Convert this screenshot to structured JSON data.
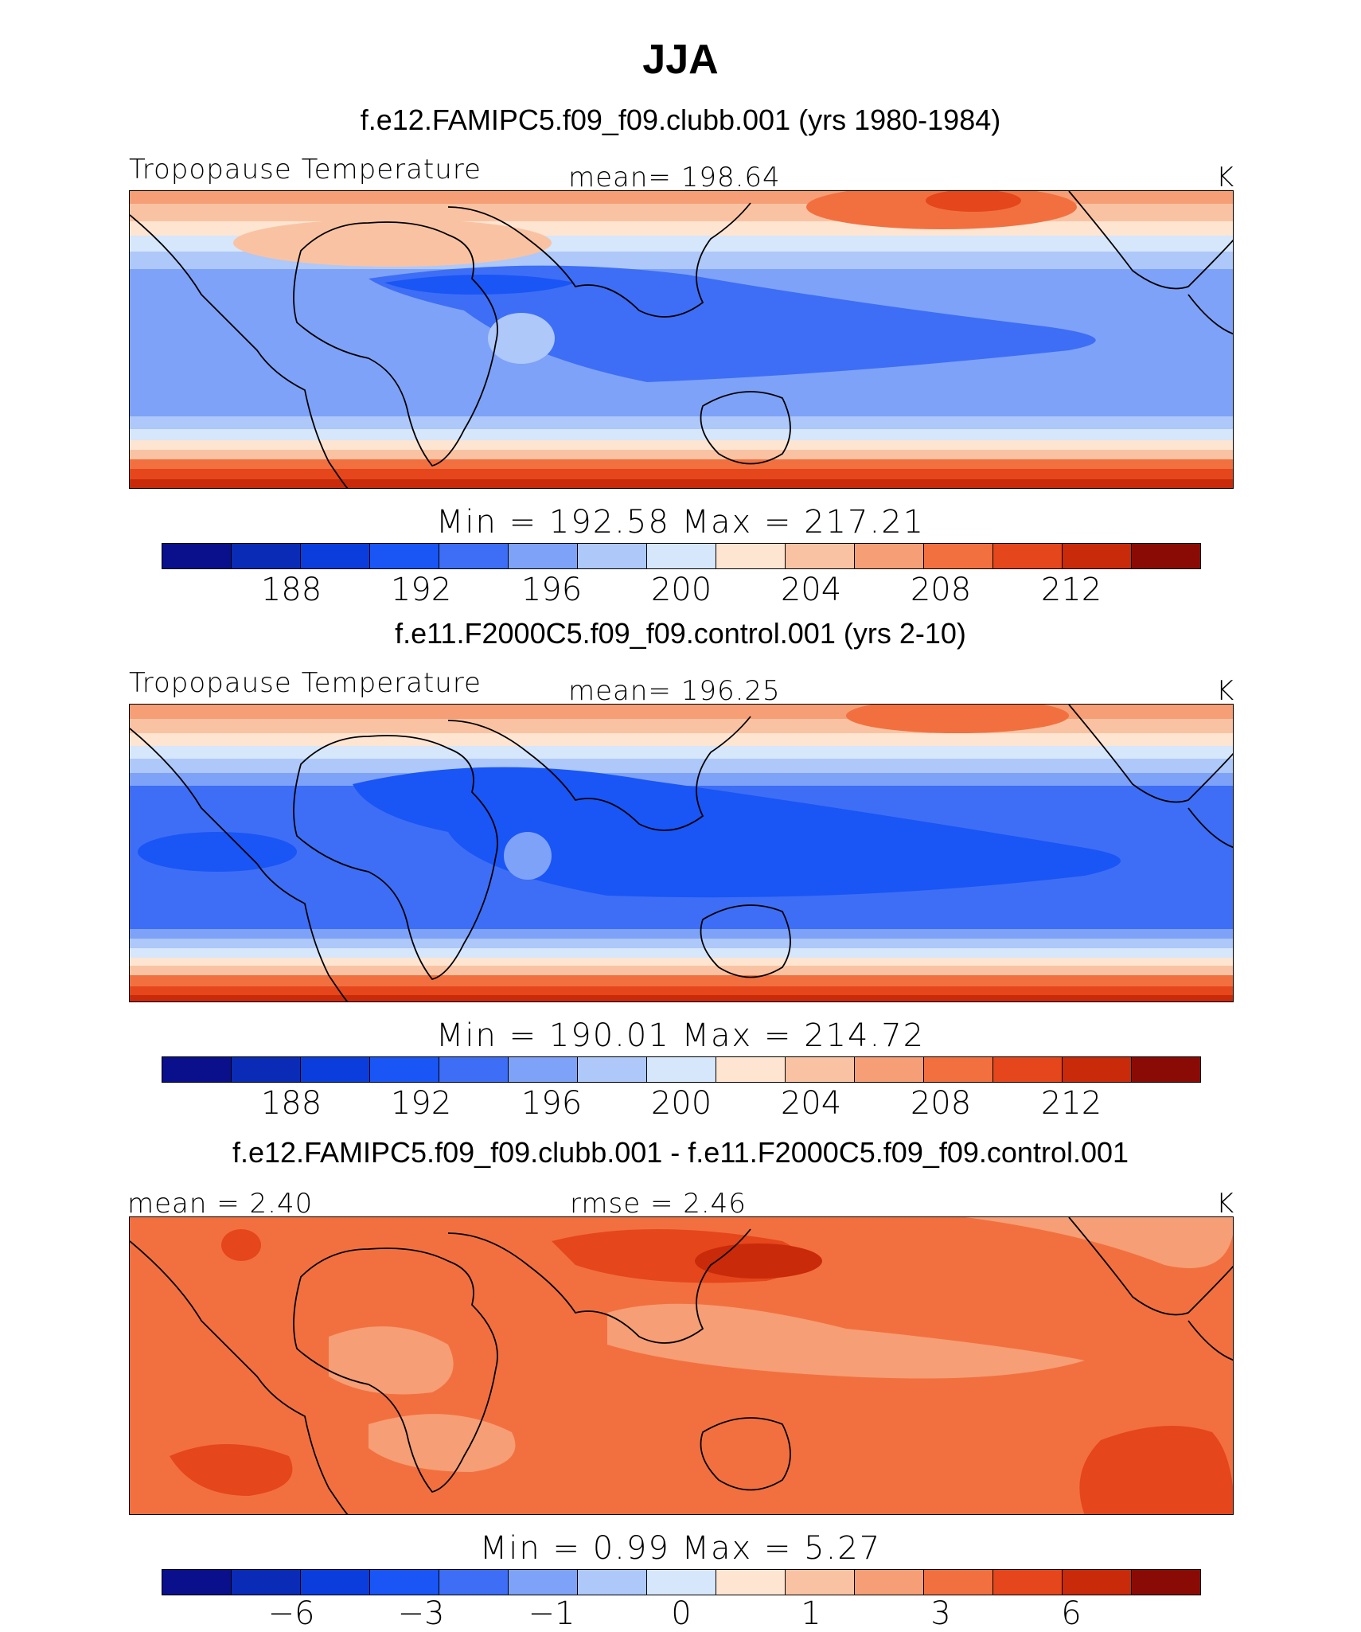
{
  "figure_title": "JJA",
  "panels": [
    {
      "subtitle": "f.e12.FAMIPC5.f09_f09.clubb.001 (yrs 1980-1984)",
      "left_label": "Tropopause Temperature",
      "center_label": "mean=  198.64",
      "units": "K",
      "minmax": "Min  =  192.58  Max  =  217.21",
      "tick_labels": [
        "188",
        "192",
        "196",
        "200",
        "204",
        "208",
        "212"
      ],
      "map_name": "Tropopause Temperature map, f.e12 clubb run"
    },
    {
      "subtitle": "f.e11.F2000C5.f09_f09.control.001 (yrs 2-10)",
      "left_label": "Tropopause Temperature",
      "center_label": "mean=  196.25",
      "units": "K",
      "minmax": "Min  =  190.01  Max  =  214.72",
      "tick_labels": [
        "188",
        "192",
        "196",
        "200",
        "204",
        "208",
        "212"
      ],
      "map_name": "Tropopause Temperature map, f.e11 control run"
    },
    {
      "subtitle": "f.e12.FAMIPC5.f09_f09.clubb.001 - f.e11.F2000C5.f09_f09.control.001",
      "left_label": "mean =    2.40",
      "center_label": "rmse =    2.46",
      "units": "K",
      "minmax": "Min  =     0.99  Max  =     5.27",
      "tick_labels": [
        "−6",
        "−3",
        "−1",
        "0",
        "1",
        "3",
        "6"
      ],
      "map_name": "Difference map"
    }
  ],
  "colors": {
    "palette": [
      "#0a0f8c",
      "#0a2bb5",
      "#0b3ddc",
      "#1a55f5",
      "#3d6ef5",
      "#7ea2f7",
      "#adc8f9",
      "#d6e6fb",
      "#fde5d2",
      "#f9c3a3",
      "#f69e75",
      "#f2703f",
      "#e5461b",
      "#c92a0a",
      "#a81a06",
      "#8a0b05"
    ],
    "coast": "#000000"
  }
}
